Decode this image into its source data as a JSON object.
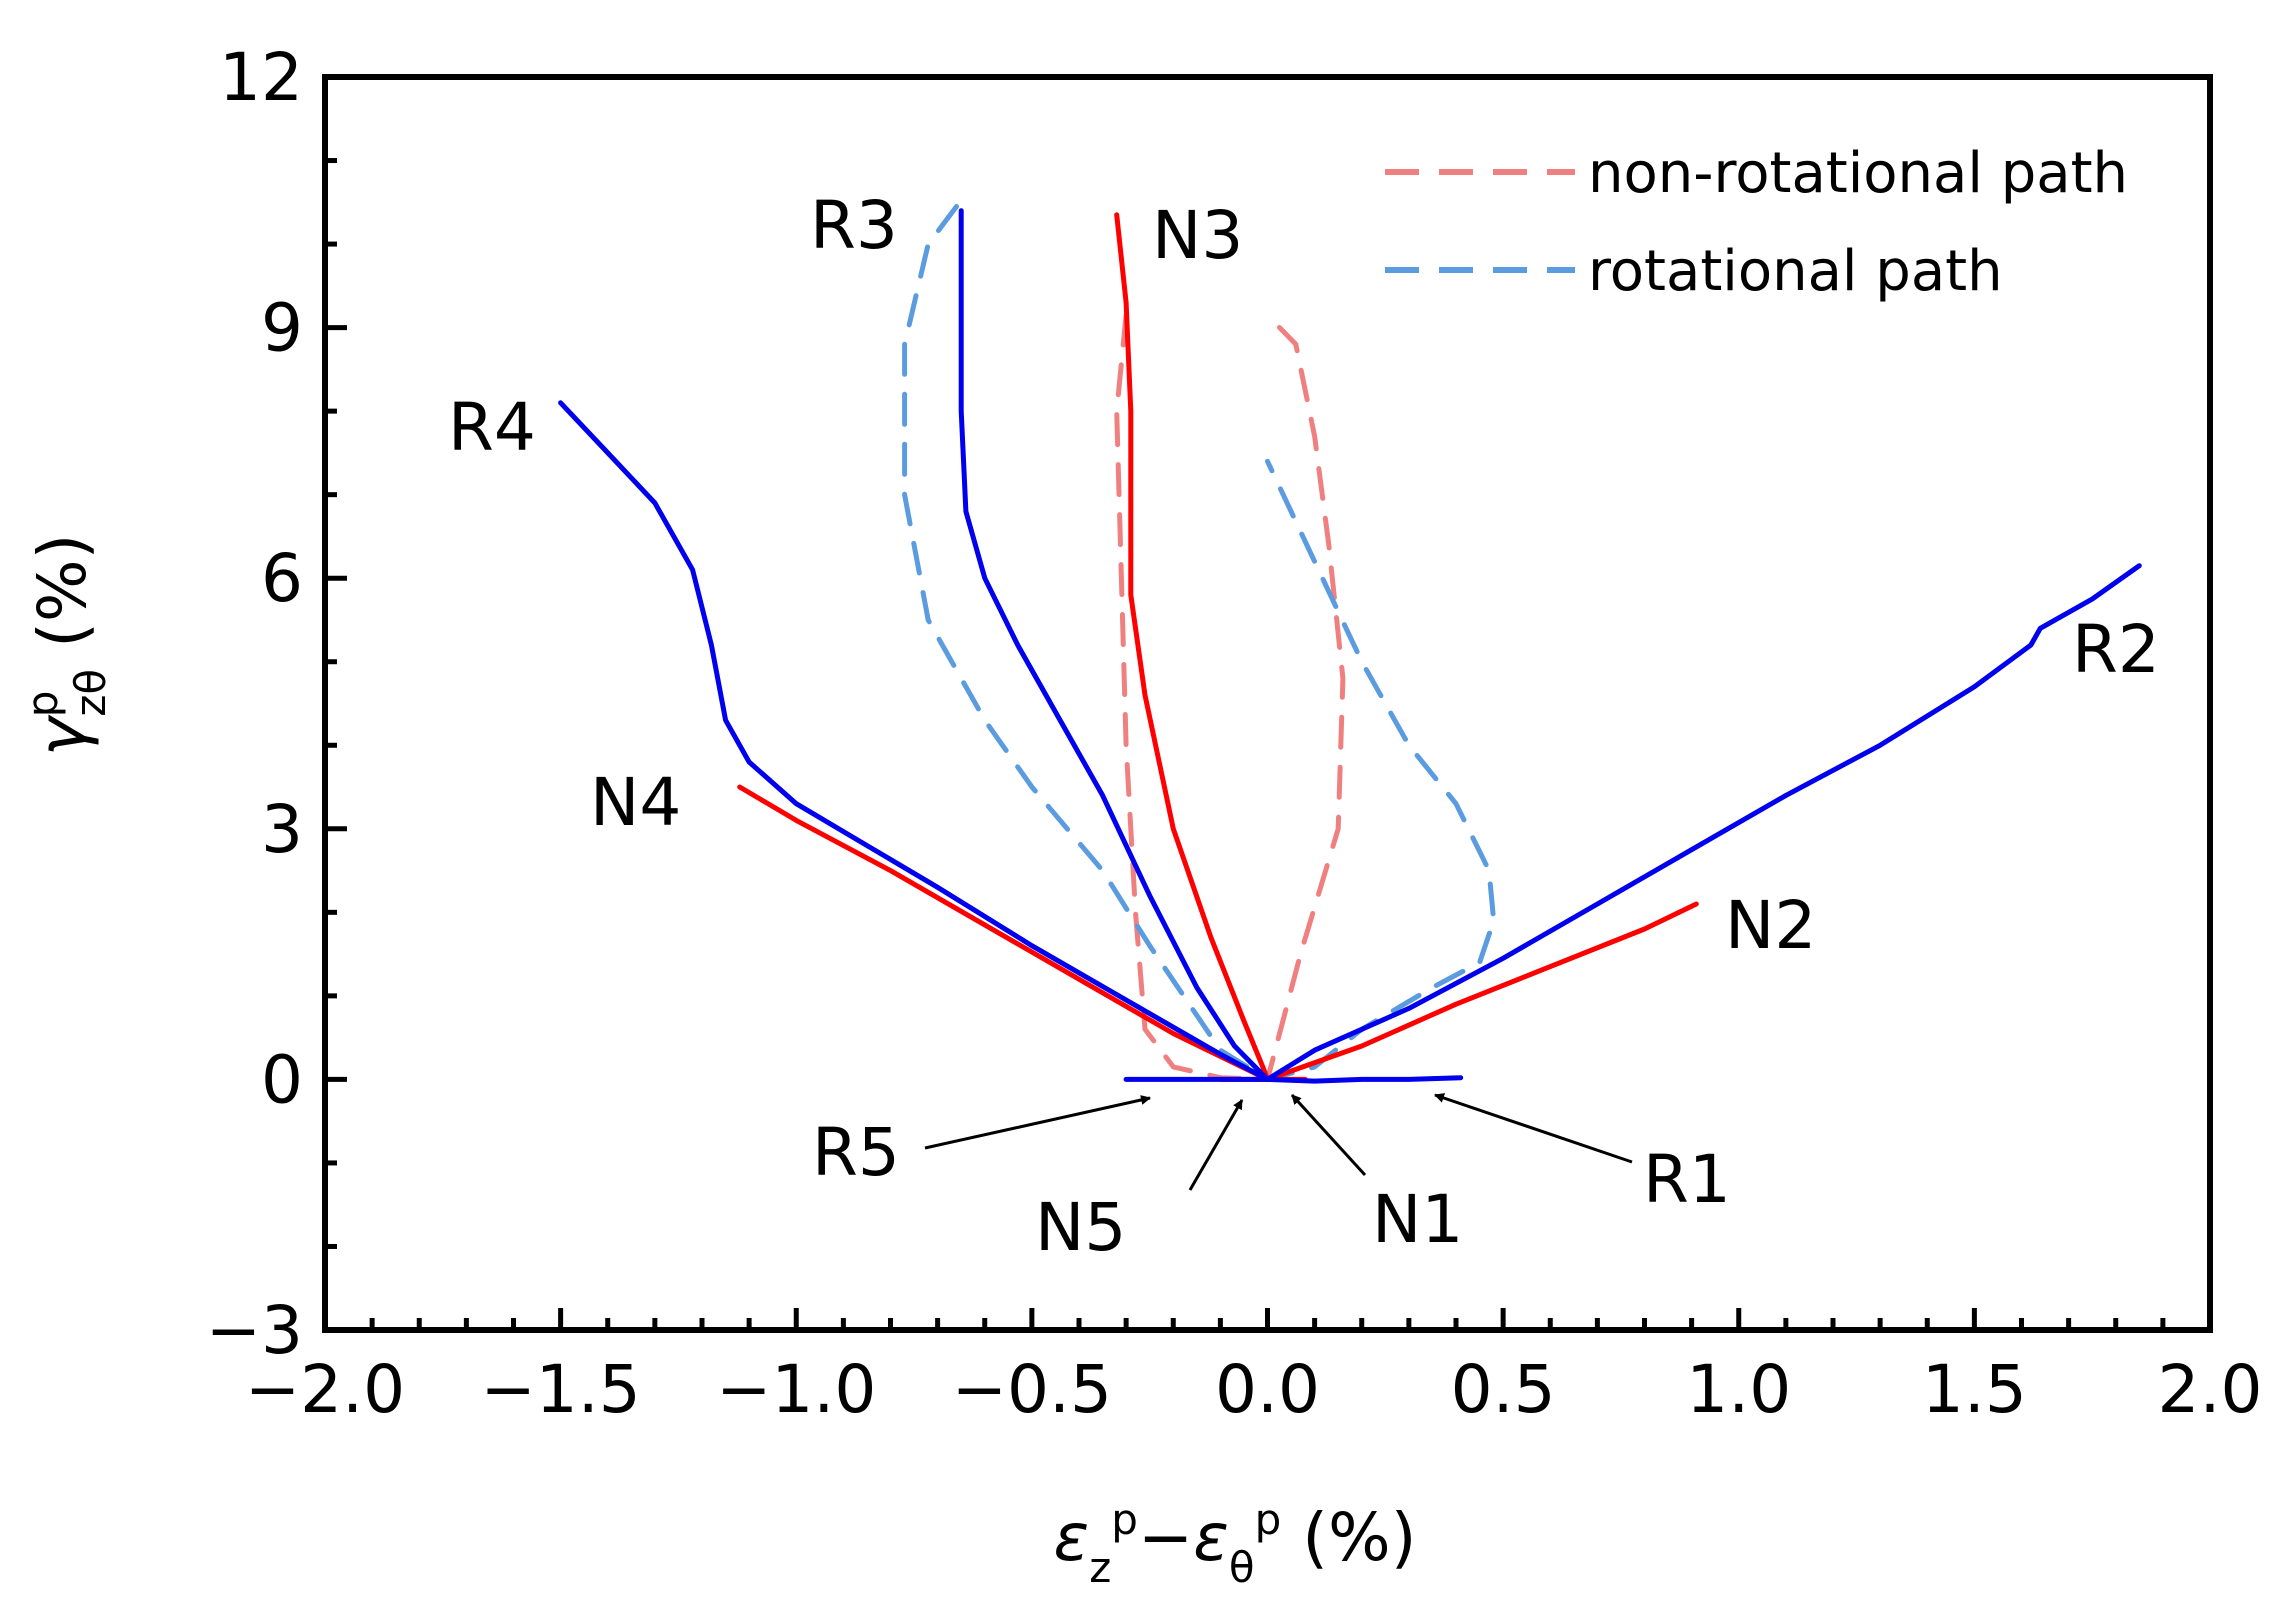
{
  "chart_data": {
    "type": "line",
    "xlabel": {
      "eps": "ε",
      "sub1": "z",
      "sup1": "p",
      "dash": "−",
      "sub2": "θ",
      "sup2": "p",
      "unit": " (%)"
    },
    "ylabel": {
      "gamma": "γ",
      "sup": "p",
      "sub": "zθ",
      "unit": " (%)"
    },
    "xlim": [
      -2.0,
      2.0
    ],
    "ylim": [
      -3,
      12
    ],
    "x_ticks": [
      -2.0,
      -1.5,
      -1.0,
      -0.5,
      0.0,
      0.5,
      1.0,
      1.5,
      2.0
    ],
    "x_tick_labels": [
      "−2.0",
      "−1.5",
      "−1.0",
      "−0.5",
      "0.0",
      "0.5",
      "1.0",
      "1.5",
      "2.0"
    ],
    "y_ticks": [
      -3,
      0,
      3,
      6,
      9,
      12
    ],
    "y_tick_labels": [
      "−3",
      "0",
      "3",
      "6",
      "9",
      "12"
    ],
    "grid": false,
    "legend": {
      "placement": "top-right",
      "entries": [
        {
          "label": "non-rotational path",
          "color": "#f08080",
          "style": "dashed"
        },
        {
          "label": "rotational path",
          "color": "#5b9bdf",
          "style": "dashed"
        }
      ]
    },
    "colors": {
      "red": "#ff0000",
      "blue": "#0000ee",
      "dash_red": "#f08080",
      "dash_blue": "#5b9bdf"
    },
    "series": [
      {
        "label": "N1",
        "color": "#ff0000",
        "style": "solid",
        "x": [
          0.0,
          0.05,
          0.08
        ],
        "y": [
          0.0,
          0.0,
          0.0
        ]
      },
      {
        "label": "N2",
        "color": "#ff0000",
        "style": "solid",
        "x": [
          0.0,
          0.2,
          0.4,
          0.6,
          0.8,
          0.91
        ],
        "y": [
          0.0,
          0.4,
          0.9,
          1.35,
          1.8,
          2.1
        ]
      },
      {
        "label": "N3",
        "color": "#ff0000",
        "style": "solid",
        "x": [
          -0.32,
          -0.3,
          -0.29,
          -0.29,
          -0.26,
          -0.2,
          -0.12,
          -0.05,
          -0.01,
          0.0
        ],
        "y": [
          10.35,
          9.3,
          8.0,
          5.8,
          4.6,
          3.0,
          1.7,
          0.7,
          0.15,
          0.0
        ]
      },
      {
        "label": "N4",
        "color": "#ff0000",
        "style": "solid",
        "x": [
          -1.12,
          -1.0,
          -0.8,
          -0.6,
          -0.4,
          -0.2,
          0.0
        ],
        "y": [
          3.5,
          3.1,
          2.5,
          1.85,
          1.2,
          0.55,
          0.0
        ]
      },
      {
        "label": "N5",
        "color": "#ff0000",
        "style": "solid",
        "x": [
          -0.1,
          -0.05,
          0.0
        ],
        "y": [
          0.0,
          0.0,
          0.0
        ]
      },
      {
        "label": "R1",
        "color": "#0000ee",
        "style": "solid",
        "x": [
          0.0,
          0.1,
          0.2,
          0.3,
          0.41
        ],
        "y": [
          0.0,
          -0.02,
          0.0,
          0.0,
          0.02
        ]
      },
      {
        "label": "R2",
        "color": "#0000ee",
        "style": "solid",
        "x": [
          0.0,
          0.1,
          0.3,
          0.5,
          0.7,
          0.9,
          1.1,
          1.3,
          1.5,
          1.62,
          1.64,
          1.75,
          1.85
        ],
        "y": [
          0.0,
          0.35,
          0.85,
          1.45,
          2.1,
          2.75,
          3.4,
          4.0,
          4.7,
          5.2,
          5.4,
          5.75,
          6.15
        ]
      },
      {
        "label": "R3",
        "color": "#0000ee",
        "style": "solid",
        "x": [
          -0.65,
          -0.65,
          -0.64,
          -0.6,
          -0.53,
          -0.45,
          -0.35,
          -0.25,
          -0.15,
          -0.07,
          0.0
        ],
        "y": [
          10.4,
          8.0,
          6.8,
          6.0,
          5.2,
          4.4,
          3.4,
          2.2,
          1.1,
          0.4,
          0.0
        ]
      },
      {
        "label": "R4",
        "color": "#0000ee",
        "style": "solid",
        "x": [
          -1.5,
          -1.4,
          -1.3,
          -1.22,
          -1.18,
          -1.15,
          -1.1,
          -1.0,
          -0.85,
          -0.7,
          -0.5,
          -0.3,
          -0.1,
          0.0
        ],
        "y": [
          8.1,
          7.5,
          6.9,
          6.1,
          5.2,
          4.3,
          3.8,
          3.3,
          2.8,
          2.3,
          1.6,
          0.95,
          0.3,
          0.0
        ]
      },
      {
        "label": "R5",
        "color": "#0000ee",
        "style": "solid",
        "x": [
          -0.3,
          -0.2,
          -0.1,
          0.0
        ],
        "y": [
          0.0,
          0.0,
          0.0,
          0.0
        ]
      },
      {
        "label": "N3 (non-rotational)",
        "color": "#f08080",
        "style": "dashed",
        "x": [
          -0.3,
          -0.32,
          -0.31,
          -0.3,
          -0.28,
          -0.26,
          -0.2,
          -0.1,
          0.0,
          0.07,
          0.15,
          0.16,
          0.13,
          0.1,
          0.06,
          0.0
        ],
        "y": [
          9.15,
          8.0,
          6.0,
          4.0,
          2.0,
          0.6,
          0.15,
          0.02,
          0.0,
          1.5,
          3.0,
          4.8,
          6.4,
          7.7,
          8.8,
          9.15
        ]
      },
      {
        "label": "R3 (rotational)",
        "color": "#5b9bdf",
        "style": "dashed",
        "x": [
          -0.66,
          -0.72,
          -0.77,
          -0.77,
          -0.72,
          -0.6,
          -0.5,
          -0.35,
          -0.25,
          -0.1,
          0.0,
          0.1,
          0.2,
          0.35,
          0.45,
          0.48,
          0.47,
          0.4,
          0.3,
          0.2,
          0.1,
          0.0
        ],
        "y": [
          10.45,
          10.0,
          8.8,
          7.0,
          5.5,
          4.3,
          3.5,
          2.5,
          1.6,
          0.35,
          0.0,
          0.15,
          0.6,
          1.1,
          1.4,
          1.9,
          2.5,
          3.3,
          4.0,
          5.0,
          6.2,
          7.4
        ]
      }
    ],
    "annotations": [
      {
        "text": "N1",
        "arrow": true
      },
      {
        "text": "N2"
      },
      {
        "text": "N3"
      },
      {
        "text": "N4"
      },
      {
        "text": "N5",
        "arrow": true
      },
      {
        "text": "R1",
        "arrow": true
      },
      {
        "text": "R2"
      },
      {
        "text": "R3"
      },
      {
        "text": "R4"
      },
      {
        "text": "R5",
        "arrow": true
      }
    ]
  }
}
